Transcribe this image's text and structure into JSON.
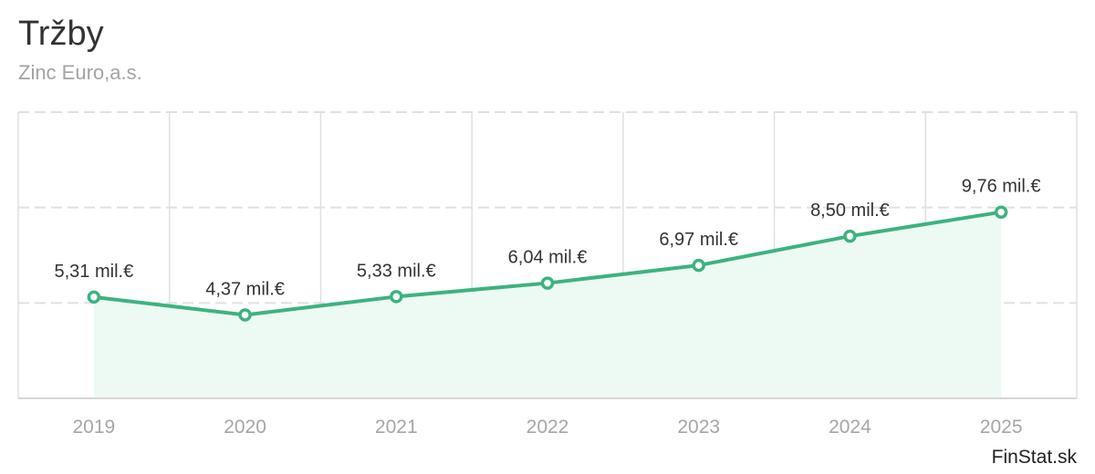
{
  "chart_data": {
    "type": "area",
    "title": "Tržby",
    "subtitle": "Zinc Euro,a.s.",
    "categories": [
      "2019",
      "2020",
      "2021",
      "2022",
      "2023",
      "2024",
      "2025"
    ],
    "values": [
      5.31,
      4.37,
      5.33,
      6.04,
      6.97,
      8.5,
      9.76
    ],
    "data_labels": [
      "5,31 mil.€",
      "4,37 mil.€",
      "5,33 mil.€",
      "6,04 mil.€",
      "6,97 mil.€",
      "8,50 mil.€",
      "9,76 mil.€"
    ],
    "ylim": [
      0,
      15
    ],
    "grid": true,
    "xlabel": "",
    "ylabel": ""
  },
  "colors": {
    "line": "#3cb37f",
    "fill": "#edf9f3",
    "grid": "#e0e0e0"
  },
  "watermark": "FinStat.sk"
}
